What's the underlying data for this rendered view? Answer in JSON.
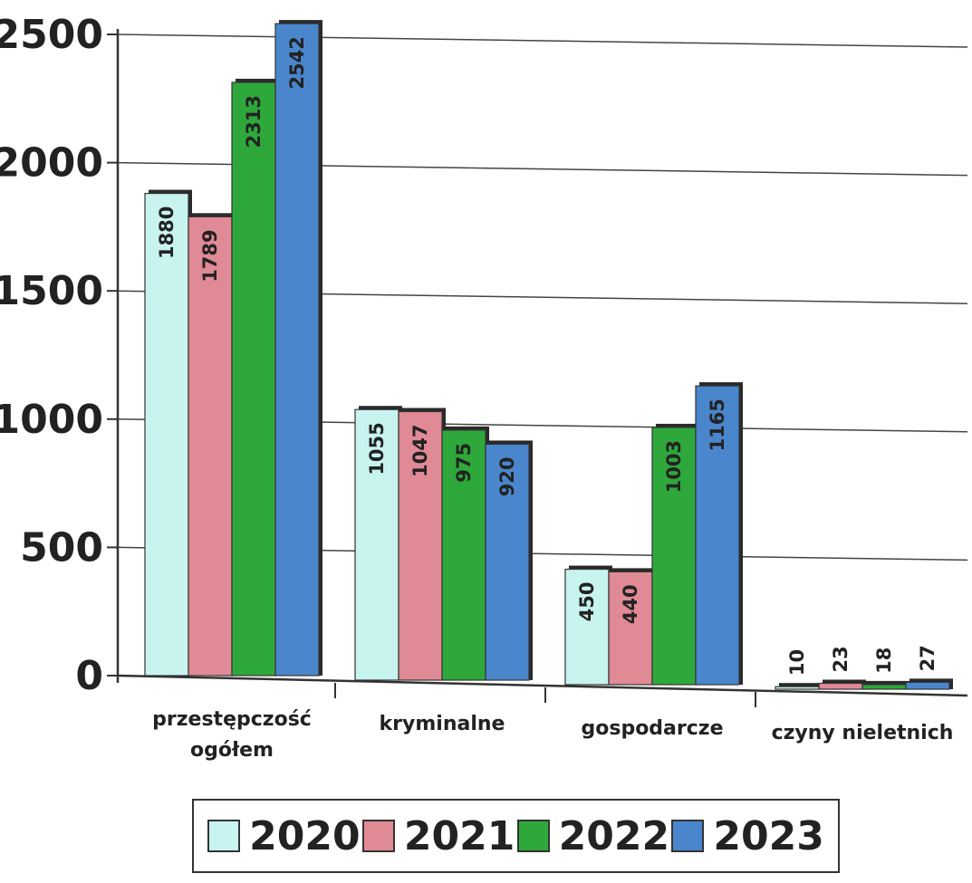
{
  "chart_data": {
    "type": "bar",
    "categories": [
      "przestępczość ogółem",
      "kryminalne",
      "gospodarcze",
      "czyny nieletnich"
    ],
    "category_lines": [
      [
        "przestępczość",
        "ogółem"
      ],
      [
        "kryminalne"
      ],
      [
        "gospodarcze"
      ],
      [
        "czyny nieletnich"
      ]
    ],
    "series": [
      {
        "name": "2020",
        "color": "#c8f4f0",
        "values": [
          1880,
          1055,
          450,
          10
        ],
        "labels": [
          "1880",
          "1055",
          "450",
          "10"
        ]
      },
      {
        "name": "2021",
        "color": "#e08a96",
        "values": [
          1789,
          1047,
          440,
          23
        ],
        "labels": [
          "1789",
          "1047",
          "440",
          "23"
        ]
      },
      {
        "name": "2022",
        "color": "#2ea83a",
        "values": [
          2313,
          975,
          1003,
          18
        ],
        "labels": [
          "2313",
          "975",
          "1003",
          "18"
        ]
      },
      {
        "name": "2023",
        "color": "#4a86cc",
        "values": [
          2542,
          920,
          1165,
          27
        ],
        "labels": [
          "2542",
          "920",
          "1165",
          "27"
        ]
      }
    ],
    "ylim": [
      0,
      2500
    ],
    "yticks": [
      "0",
      "500",
      "1000",
      "1500",
      "2000",
      "2500"
    ],
    "grid": true,
    "legend_position": "bottom",
    "title": "",
    "xlabel": "",
    "ylabel": ""
  },
  "legend": {
    "items": [
      {
        "label": "2020",
        "color": "#c8f4f0"
      },
      {
        "label": "2021",
        "color": "#e08a96"
      },
      {
        "label": "2022",
        "color": "#2ea83a"
      },
      {
        "label": "2023",
        "color": "#4a86cc"
      }
    ]
  }
}
